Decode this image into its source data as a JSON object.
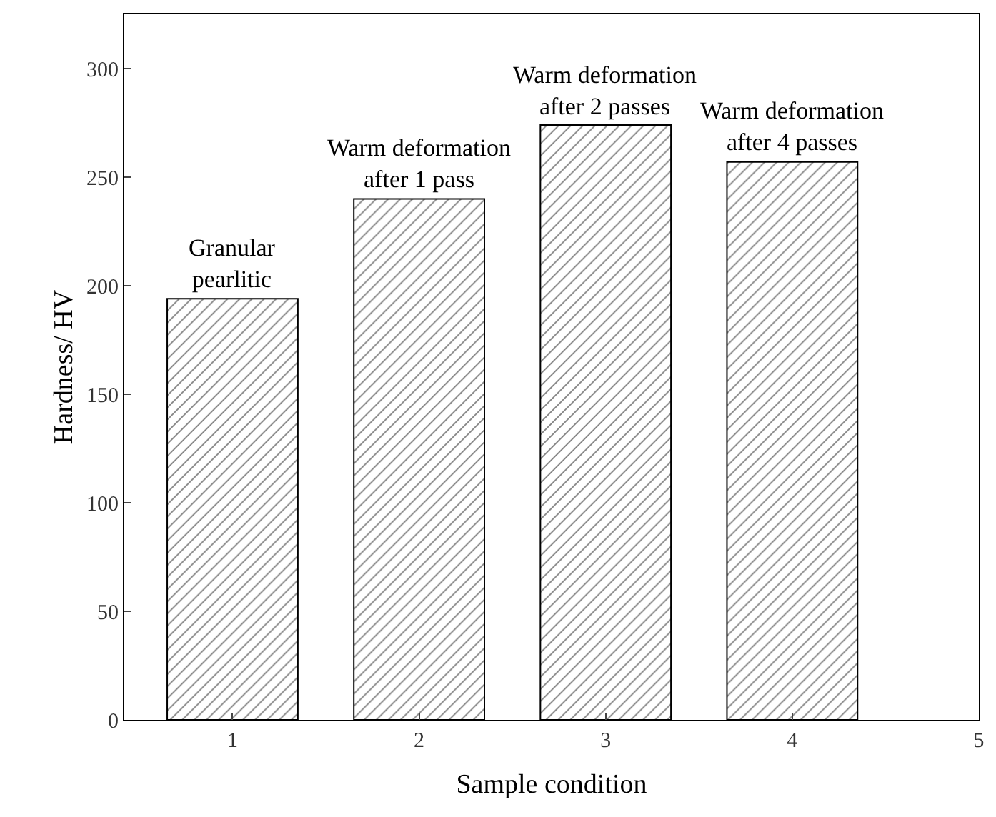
{
  "chart_data": {
    "type": "bar",
    "xlabel": "Sample condition",
    "ylabel": "Hardness/ HV",
    "x": [
      1,
      2,
      3,
      4
    ],
    "values": [
      194,
      240,
      274,
      257
    ],
    "color": "#000000",
    "xlim": [
      0.42,
      5
    ],
    "xticks": [
      1,
      2,
      3,
      4,
      5
    ],
    "ylim": [
      0,
      325
    ],
    "yticks": [
      0,
      50,
      100,
      150,
      200,
      250,
      300
    ],
    "annotations": [
      {
        "text": "Granular\npearlitic",
        "x": 1,
        "y": 194
      },
      {
        "text": "Warm deformation\nafter 1 pass",
        "x": 2,
        "y": 240
      },
      {
        "text": "Warm deformation\nafter 2 passes",
        "x": 3,
        "y": 274
      },
      {
        "text": "Warm deformation\nafter 4 passes",
        "x": 4,
        "y": 257
      }
    ],
    "legend": false
  }
}
